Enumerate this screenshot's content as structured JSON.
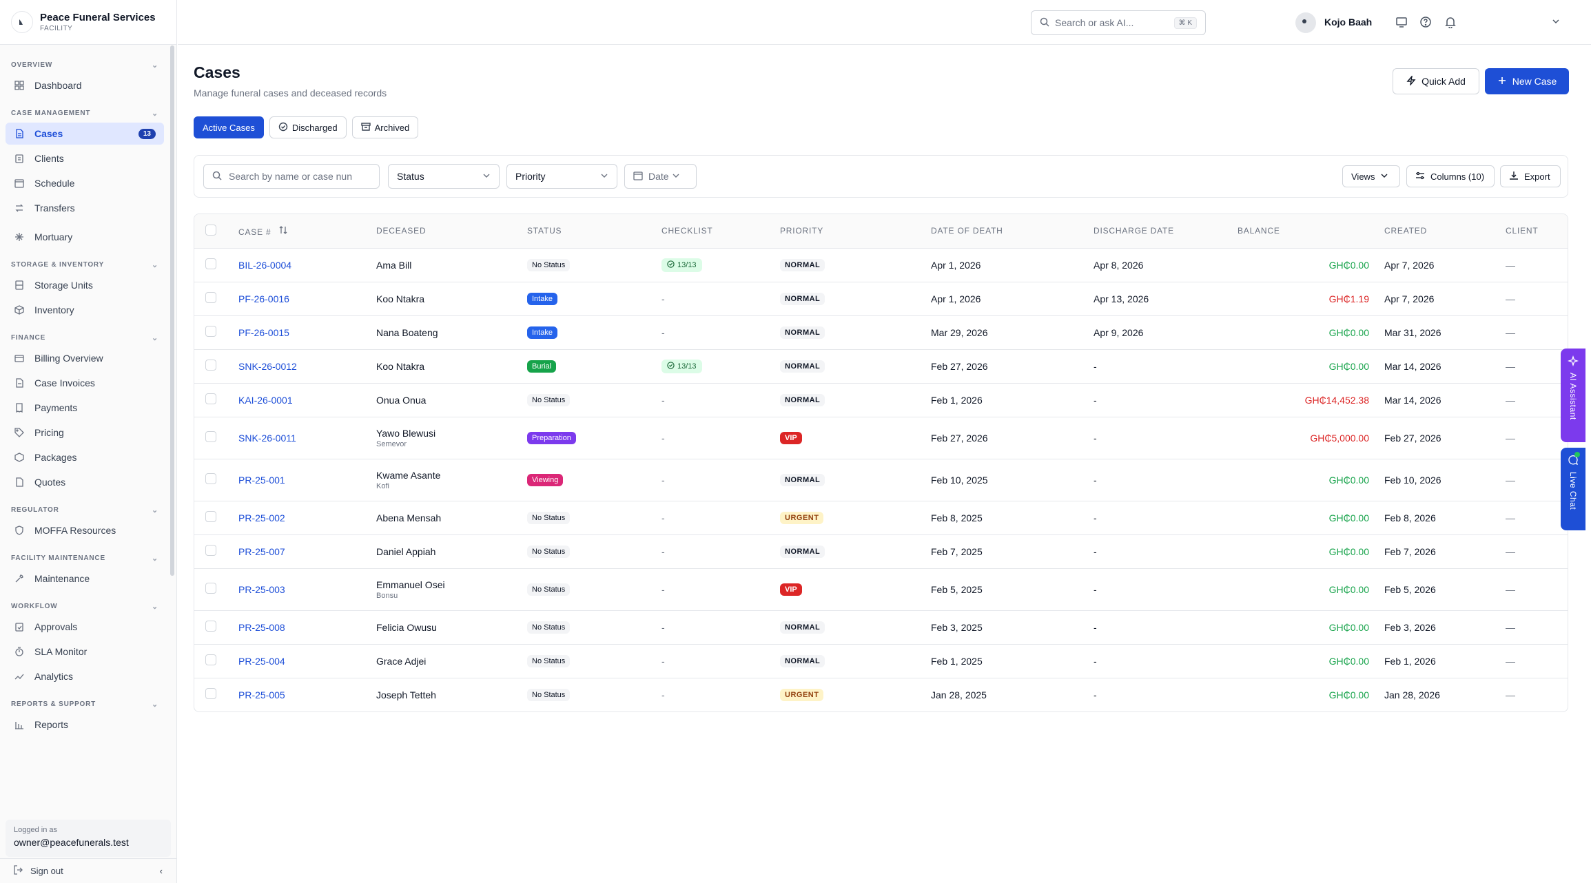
{
  "brand": {
    "name": "Peace Funeral Services",
    "sub": "FACILITY"
  },
  "sidebar": {
    "sections": {
      "overview": "OVERVIEW",
      "case_management": "CASE MANAGEMENT",
      "storage": "STORAGE & INVENTORY",
      "finance": "FINANCE",
      "regulator": "REGULATOR",
      "facility": "FACILITY MAINTENANCE",
      "workflow": "WORKFLOW",
      "reports": "REPORTS & SUPPORT"
    },
    "items": {
      "dashboard": "Dashboard",
      "cases": "Cases",
      "cases_count": "13",
      "clients": "Clients",
      "schedule": "Schedule",
      "transfers": "Transfers",
      "mortuary": "Mortuary",
      "storage_units": "Storage Units",
      "inventory": "Inventory",
      "billing_overview": "Billing Overview",
      "case_invoices": "Case Invoices",
      "payments": "Payments",
      "pricing": "Pricing",
      "packages": "Packages",
      "quotes": "Quotes",
      "moffa": "MOFFA Resources",
      "maintenance": "Maintenance",
      "approvals": "Approvals",
      "sla": "SLA Monitor",
      "analytics": "Analytics",
      "reports": "Reports"
    },
    "login_label": "Logged in as",
    "login_email": "owner@peacefunerals.test",
    "signout": "Sign out"
  },
  "topbar": {
    "search_placeholder": "Search or ask AI...",
    "shortcut": "⌘ K",
    "user_name": "Kojo Baah"
  },
  "page": {
    "title": "Cases",
    "subtitle": "Manage funeral cases and deceased records",
    "quick_add": "Quick Add",
    "new_case": "New Case"
  },
  "tabs": {
    "active": "Active Cases",
    "discharged": "Discharged",
    "archived": "Archived"
  },
  "filters": {
    "search_placeholder": "Search by name or case nun",
    "status": "Status",
    "priority": "Priority",
    "date": "Date",
    "views": "Views",
    "columns": "Columns (10)",
    "export": "Export"
  },
  "table": {
    "headers": {
      "case": "CASE #",
      "deceased": "DECEASED",
      "status": "STATUS",
      "checklist": "CHECKLIST",
      "priority": "PRIORITY",
      "dod": "DATE OF DEATH",
      "discharge": "DISCHARGE DATE",
      "balance": "BALANCE",
      "created": "CREATED",
      "client": "CLIENT"
    },
    "rows": [
      {
        "case": "BIL-26-0004",
        "name": "Ama Bill",
        "alias": "",
        "status": "No Status",
        "checklist": "13/13",
        "priority": "NORMAL",
        "dod": "Apr 1, 2026",
        "discharge": "Apr 8, 2026",
        "balance": "GH₵0.00",
        "created": "Apr 7, 2026",
        "client": "—"
      },
      {
        "case": "PF-26-0016",
        "name": "Koo Ntakra",
        "alias": "",
        "status": "Intake",
        "checklist": "-",
        "priority": "NORMAL",
        "dod": "Apr 1, 2026",
        "discharge": "Apr 13, 2026",
        "balance": "GH₵1.19",
        "created": "Apr 7, 2026",
        "client": "—"
      },
      {
        "case": "PF-26-0015",
        "name": "Nana Boateng",
        "alias": "",
        "status": "Intake",
        "checklist": "-",
        "priority": "NORMAL",
        "dod": "Mar 29, 2026",
        "discharge": "Apr 9, 2026",
        "balance": "GH₵0.00",
        "created": "Mar 31, 2026",
        "client": "—"
      },
      {
        "case": "SNK-26-0012",
        "name": "Koo Ntakra",
        "alias": "",
        "status": "Burial",
        "checklist": "13/13",
        "priority": "NORMAL",
        "dod": "Feb 27, 2026",
        "discharge": "-",
        "balance": "GH₵0.00",
        "created": "Mar 14, 2026",
        "client": "—"
      },
      {
        "case": "KAI-26-0001",
        "name": "Onua Onua",
        "alias": "",
        "status": "No Status",
        "checklist": "-",
        "priority": "NORMAL",
        "dod": "Feb 1, 2026",
        "discharge": "-",
        "balance": "GH₵14,452.38",
        "created": "Mar 14, 2026",
        "client": "—"
      },
      {
        "case": "SNK-26-0011",
        "name": "Yawo Blewusi",
        "alias": "Semevor",
        "status": "Preparation",
        "checklist": "-",
        "priority": "VIP",
        "dod": "Feb 27, 2026",
        "discharge": "-",
        "balance": "GH₵5,000.00",
        "created": "Feb 27, 2026",
        "client": "—"
      },
      {
        "case": "PR-25-001",
        "name": "Kwame Asante",
        "alias": "Kofi",
        "status": "Viewing",
        "checklist": "-",
        "priority": "NORMAL",
        "dod": "Feb 10, 2025",
        "discharge": "-",
        "balance": "GH₵0.00",
        "created": "Feb 10, 2026",
        "client": "—"
      },
      {
        "case": "PR-25-002",
        "name": "Abena Mensah",
        "alias": "",
        "status": "No Status",
        "checklist": "-",
        "priority": "URGENT",
        "dod": "Feb 8, 2025",
        "discharge": "-",
        "balance": "GH₵0.00",
        "created": "Feb 8, 2026",
        "client": "—"
      },
      {
        "case": "PR-25-007",
        "name": "Daniel Appiah",
        "alias": "",
        "status": "No Status",
        "checklist": "-",
        "priority": "NORMAL",
        "dod": "Feb 7, 2025",
        "discharge": "-",
        "balance": "GH₵0.00",
        "created": "Feb 7, 2026",
        "client": "—"
      },
      {
        "case": "PR-25-003",
        "name": "Emmanuel Osei",
        "alias": "Bonsu",
        "status": "No Status",
        "checklist": "-",
        "priority": "VIP",
        "dod": "Feb 5, 2025",
        "discharge": "-",
        "balance": "GH₵0.00",
        "created": "Feb 5, 2026",
        "client": "—"
      },
      {
        "case": "PR-25-008",
        "name": "Felicia Owusu",
        "alias": "",
        "status": "No Status",
        "checklist": "-",
        "priority": "NORMAL",
        "dod": "Feb 3, 2025",
        "discharge": "-",
        "balance": "GH₵0.00",
        "created": "Feb 3, 2026",
        "client": "—"
      },
      {
        "case": "PR-25-004",
        "name": "Grace Adjei",
        "alias": "",
        "status": "No Status",
        "checklist": "-",
        "priority": "NORMAL",
        "dod": "Feb 1, 2025",
        "discharge": "-",
        "balance": "GH₵0.00",
        "created": "Feb 1, 2026",
        "client": "—"
      },
      {
        "case": "PR-25-005",
        "name": "Joseph Tetteh",
        "alias": "",
        "status": "No Status",
        "checklist": "-",
        "priority": "URGENT",
        "dod": "Jan 28, 2025",
        "discharge": "-",
        "balance": "GH₵0.00",
        "created": "Jan 28, 2026",
        "client": "—"
      }
    ]
  },
  "floating": {
    "ai": "AI Assistant",
    "chat": "Live Chat"
  }
}
